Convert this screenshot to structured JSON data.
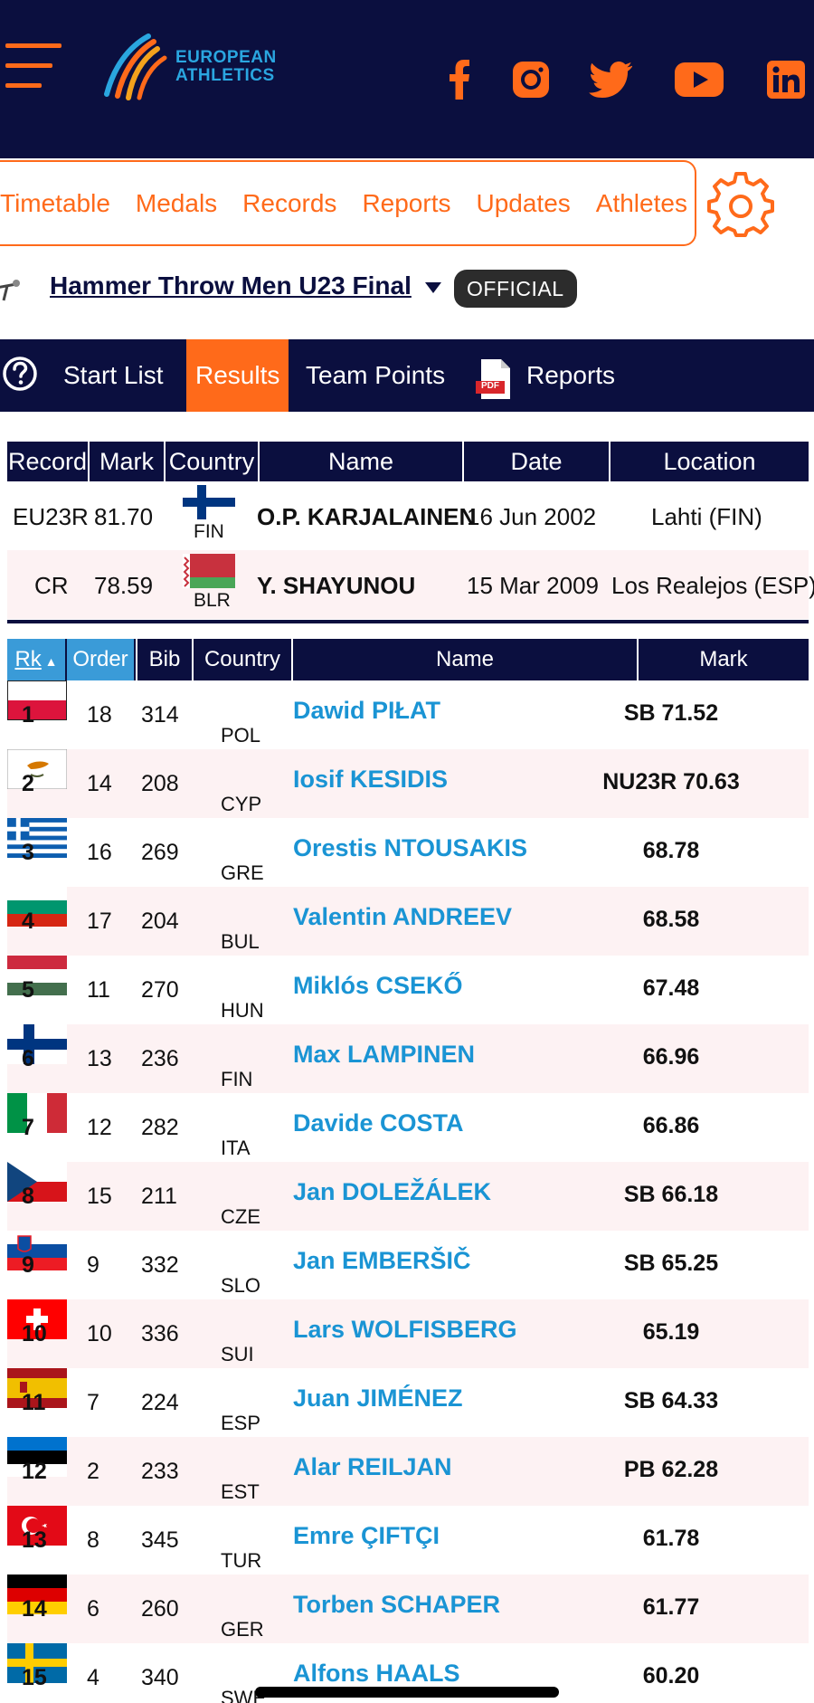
{
  "header": {
    "logo_line1": "EUROPEAN",
    "logo_line2": "ATHLETICS",
    "social": [
      "facebook-icon",
      "instagram-icon",
      "twitter-icon",
      "youtube-icon",
      "linkedin-icon"
    ],
    "accent_color": "#ff6a1a",
    "navy_color": "#0b0f3f"
  },
  "nav": {
    "items": [
      "Timetable",
      "Medals",
      "Records",
      "Reports",
      "Updates",
      "Athletes"
    ]
  },
  "event": {
    "title": "Hammer Throw Men U23 Final",
    "badge": "OFFICIAL"
  },
  "subtabs": {
    "start_list": "Start List",
    "results": "Results",
    "team_points": "Team Points",
    "reports": "Reports",
    "pdf_label": "PDF"
  },
  "records": {
    "headers": [
      "Record",
      "Mark",
      "Country",
      "Name",
      "Date",
      "Location"
    ],
    "rows": [
      {
        "record": "EU23R",
        "mark": "81.70",
        "country": "FIN",
        "name": "O.P. KARJALAINEN",
        "date": "16 Jun 2002",
        "location": "Lahti (FIN)"
      },
      {
        "record": "CR",
        "mark": "78.59",
        "country": "BLR",
        "name": "Y. SHAYUNOU",
        "date": "15 Mar 2009",
        "location": "Los Realejos (ESP)"
      }
    ]
  },
  "results": {
    "headers": {
      "rk": "Rk",
      "order": "Order",
      "bib": "Bib",
      "country": "Country",
      "name": "Name",
      "mark": "Mark"
    },
    "rows": [
      {
        "rank": "1",
        "order": "18",
        "bib": "314",
        "country": "POL",
        "name": "Dawid PIŁAT",
        "mark": "SB 71.52"
      },
      {
        "rank": "2",
        "order": "14",
        "bib": "208",
        "country": "CYP",
        "name": "Iosif KESIDIS",
        "mark": "NU23R 70.63"
      },
      {
        "rank": "3",
        "order": "16",
        "bib": "269",
        "country": "GRE",
        "name": "Orestis NTOUSAKIS",
        "mark": "68.78"
      },
      {
        "rank": "4",
        "order": "17",
        "bib": "204",
        "country": "BUL",
        "name": "Valentin ANDREEV",
        "mark": "68.58"
      },
      {
        "rank": "5",
        "order": "11",
        "bib": "270",
        "country": "HUN",
        "name": "Miklós CSEKŐ",
        "mark": "67.48"
      },
      {
        "rank": "6",
        "order": "13",
        "bib": "236",
        "country": "FIN",
        "name": "Max LAMPINEN",
        "mark": "66.96"
      },
      {
        "rank": "7",
        "order": "12",
        "bib": "282",
        "country": "ITA",
        "name": "Davide COSTA",
        "mark": "66.86"
      },
      {
        "rank": "8",
        "order": "15",
        "bib": "211",
        "country": "CZE",
        "name": "Jan DOLEŽÁLEK",
        "mark": "SB 66.18"
      },
      {
        "rank": "9",
        "order": "9",
        "bib": "332",
        "country": "SLO",
        "name": "Jan EMBERŠIČ",
        "mark": "SB 65.25"
      },
      {
        "rank": "10",
        "order": "10",
        "bib": "336",
        "country": "SUI",
        "name": "Lars WOLFISBERG",
        "mark": "65.19"
      },
      {
        "rank": "11",
        "order": "7",
        "bib": "224",
        "country": "ESP",
        "name": "Juan JIMÉNEZ",
        "mark": "SB 64.33"
      },
      {
        "rank": "12",
        "order": "2",
        "bib": "233",
        "country": "EST",
        "name": "Alar REILJAN",
        "mark": "PB 62.28"
      },
      {
        "rank": "13",
        "order": "8",
        "bib": "345",
        "country": "TUR",
        "name": "Emre ÇIFTÇI",
        "mark": "61.78"
      },
      {
        "rank": "14",
        "order": "6",
        "bib": "260",
        "country": "GER",
        "name": "Torben SCHAPER",
        "mark": "61.77"
      },
      {
        "rank": "15",
        "order": "4",
        "bib": "340",
        "country": "SWE",
        "name": "Alfons HAALS",
        "mark": "60.20"
      }
    ]
  }
}
